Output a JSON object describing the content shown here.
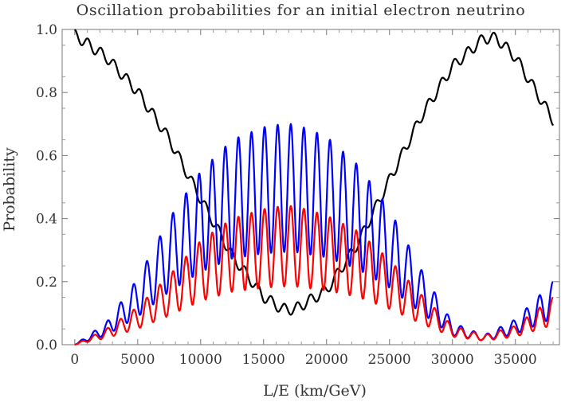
{
  "chart_data": {
    "type": "line",
    "title": "Oscillation probabilities for an initial electron neutrino",
    "xlabel": "L/E (km/GeV)",
    "ylabel": "Probability",
    "xlim": [
      -1000,
      38500
    ],
    "ylim": [
      0.0,
      1.0
    ],
    "xticks": [
      0,
      5000,
      10000,
      15000,
      20000,
      25000,
      30000,
      35000
    ],
    "xtick_labels": [
      "0",
      "5000",
      "10000",
      "15000",
      "20000",
      "25000",
      "30000",
      "35000"
    ],
    "yticks": [
      0.0,
      0.2,
      0.4,
      0.6,
      0.8,
      1.0
    ],
    "ytick_labels": [
      "0.0",
      "0.2",
      "0.4",
      "0.6",
      "0.8",
      "1.0"
    ],
    "x_range": [
      0,
      38000
    ],
    "series": [
      {
        "color": "#000000",
        "x": [
          0,
          2500,
          5000,
          7500,
          10000,
          12500,
          15000,
          16500,
          17500,
          20000,
          22500,
          25000,
          27500,
          30000,
          32500,
          33500,
          35000,
          38000
        ],
        "y": [
          1.0,
          0.93,
          0.82,
          0.67,
          0.48,
          0.3,
          0.17,
          0.13,
          0.13,
          0.19,
          0.34,
          0.54,
          0.74,
          0.9,
          0.99,
          0.99,
          0.93,
          0.73
        ]
      },
      {
        "color": "#0000ff",
        "x": [
          0,
          2500,
          5000,
          7500,
          10000,
          12500,
          15000,
          16500,
          17500,
          20000,
          22500,
          25000,
          27500,
          30000,
          32500,
          35000,
          38000
        ],
        "y": [
          0.0,
          0.07,
          0.21,
          0.4,
          0.55,
          0.65,
          0.69,
          0.7,
          0.7,
          0.66,
          0.57,
          0.43,
          0.24,
          0.07,
          0.03,
          0.08,
          0.2
        ]
      },
      {
        "color": "#ff0000",
        "x": [
          0,
          2500,
          5000,
          7500,
          10000,
          12500,
          15000,
          16500,
          17500,
          20000,
          22500,
          25000,
          27500,
          30000,
          32500,
          35000,
          38000
        ],
        "y": [
          0.0,
          0.05,
          0.12,
          0.22,
          0.33,
          0.4,
          0.43,
          0.44,
          0.44,
          0.41,
          0.36,
          0.27,
          0.16,
          0.06,
          0.03,
          0.06,
          0.15
        ]
      }
    ],
    "grid": false,
    "legend": "none"
  }
}
